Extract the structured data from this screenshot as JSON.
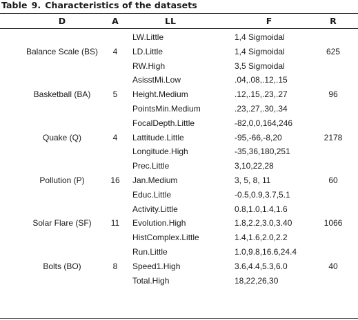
{
  "caption": {
    "label": "Table",
    "number": "9.",
    "text": "Characteristics of the datasets"
  },
  "headers": {
    "d": "D",
    "a": "A",
    "ll": "LL",
    "f": "F",
    "r": "R"
  },
  "groups": [
    {
      "d": "Balance Scale (BS)",
      "a": "4",
      "r": "625",
      "rows": [
        {
          "ll": "LW.Little",
          "f": "1,4 Sigmoidal"
        },
        {
          "ll": "LD.Little",
          "f": "1,4 Sigmoidal"
        },
        {
          "ll": "RW.High",
          "f": "3,5 Sigmoidal"
        }
      ]
    },
    {
      "d": "Basketball (BA)",
      "a": "5",
      "r": "96",
      "rows": [
        {
          "ll": "AsisstMi.Low",
          "f": ".04,.08,.12,.15"
        },
        {
          "ll": "Height.Medium",
          "f": ".12,.15,.23,.27"
        },
        {
          "ll": "PointsMin.Medium",
          "f": ".23,.27,.30,.34"
        }
      ]
    },
    {
      "d": "Quake (Q)",
      "a": "4",
      "r": "2178",
      "rows": [
        {
          "ll": "FocalDepth.Little",
          "f": "-82,0,0,164,246"
        },
        {
          "ll": "Lattitude.Little",
          "f": "-95,-66,-8,20"
        },
        {
          "ll": "Longitude.High",
          "f": "-35,36,180,251"
        }
      ]
    },
    {
      "d": "Pollution (P)",
      "a": "16",
      "r": "60",
      "rows": [
        {
          "ll": "Prec.Little",
          "f": "3,10,22,28"
        },
        {
          "ll": "Jan.Medium",
          "f": "3, 5, 8, 11"
        },
        {
          "ll": "Educ.Little",
          "f": "-0.5,0.9,3.7,5.1"
        }
      ]
    },
    {
      "d": "Solar Flare (SF)",
      "a": "11",
      "r": "1066",
      "rows": [
        {
          "ll": "Activity.Little",
          "f": "0.8,1.0,1.4,1.6"
        },
        {
          "ll": "Evolution.High",
          "f": "1.8,2.2,3.0,3.40"
        },
        {
          "ll": "HistComplex.Little",
          "f": "1.4,1.6,2.0,2.2"
        }
      ]
    },
    {
      "d": "Bolts (BO)",
      "a": "8",
      "r": "40",
      "rows": [
        {
          "ll": "Run.Little",
          "f": "1.0,9.8,16.6,24.4"
        },
        {
          "ll": "Speed1.High",
          "f": "3.6,4.4,5.3,6.0"
        },
        {
          "ll": "Total.High",
          "f": "18,22,26,30"
        }
      ]
    }
  ]
}
